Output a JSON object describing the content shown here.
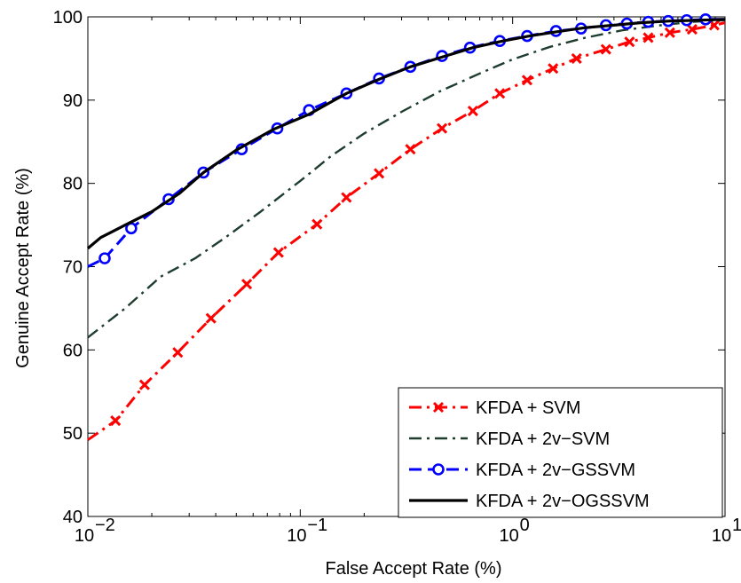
{
  "chart_data": {
    "type": "line",
    "xlabel": "False Accept Rate (%)",
    "ylabel": "Genuine Accept Rate (%)",
    "xscale": "log",
    "xlim": [
      0.01,
      10
    ],
    "ylim": [
      40,
      100
    ],
    "xticks": [
      {
        "value": 0.01,
        "base": "10",
        "exp": "−2"
      },
      {
        "value": 0.1,
        "base": "10",
        "exp": "−1"
      },
      {
        "value": 1,
        "base": "10",
        "exp": "0"
      },
      {
        "value": 10,
        "base": "10",
        "exp": "1"
      }
    ],
    "yticks": [
      "40",
      "50",
      "60",
      "70",
      "80",
      "90",
      "100"
    ],
    "legend_position": "bottom-right",
    "grid": false,
    "series": [
      {
        "name": "KFDA + SVM",
        "color": "#ff0000",
        "line_style": "dashdot",
        "marker": "x",
        "points": [
          [
            0.01,
            49.2
          ],
          [
            0.0135,
            51.5
          ],
          [
            0.0185,
            55.8
          ],
          [
            0.0265,
            59.7
          ],
          [
            0.038,
            63.8
          ],
          [
            0.056,
            67.9
          ],
          [
            0.079,
            71.7
          ],
          [
            0.12,
            75.1
          ],
          [
            0.165,
            78.3
          ],
          [
            0.235,
            81.2
          ],
          [
            0.33,
            84.1
          ],
          [
            0.465,
            86.6
          ],
          [
            0.65,
            88.7
          ],
          [
            0.87,
            90.8
          ],
          [
            1.17,
            92.4
          ],
          [
            1.55,
            93.8
          ],
          [
            2.0,
            95.0
          ],
          [
            2.75,
            96.1
          ],
          [
            3.55,
            97.0
          ],
          [
            4.35,
            97.5
          ],
          [
            5.5,
            98.1
          ],
          [
            7.0,
            98.5
          ],
          [
            8.9,
            99.0
          ],
          [
            10,
            99.3
          ]
        ],
        "markers": [
          [
            0.0135,
            51.5
          ],
          [
            0.0185,
            55.8
          ],
          [
            0.0265,
            59.7
          ],
          [
            0.038,
            63.8
          ],
          [
            0.056,
            67.9
          ],
          [
            0.079,
            71.7
          ],
          [
            0.12,
            75.1
          ],
          [
            0.165,
            78.3
          ],
          [
            0.235,
            81.2
          ],
          [
            0.33,
            84.1
          ],
          [
            0.465,
            86.6
          ],
          [
            0.65,
            88.7
          ],
          [
            0.87,
            90.8
          ],
          [
            1.17,
            92.4
          ],
          [
            1.55,
            93.8
          ],
          [
            2.0,
            95.0
          ],
          [
            2.75,
            96.1
          ],
          [
            3.55,
            97.0
          ],
          [
            4.35,
            97.5
          ],
          [
            5.5,
            98.1
          ],
          [
            7.0,
            98.5
          ],
          [
            8.9,
            99.0
          ]
        ]
      },
      {
        "name": "KFDA + 2v−SVM",
        "color": "#1e3d2f",
        "line_style": "dashdot",
        "marker": "none",
        "points": [
          [
            0.01,
            61.5
          ],
          [
            0.015,
            65.0
          ],
          [
            0.022,
            68.8
          ],
          [
            0.032,
            71.0
          ],
          [
            0.045,
            73.6
          ],
          [
            0.065,
            76.6
          ],
          [
            0.1,
            80.3
          ],
          [
            0.14,
            83.3
          ],
          [
            0.2,
            86.0
          ],
          [
            0.3,
            88.6
          ],
          [
            0.45,
            91.0
          ],
          [
            0.7,
            93.2
          ],
          [
            1.0,
            94.9
          ],
          [
            1.5,
            96.4
          ],
          [
            2.2,
            97.5
          ],
          [
            3.3,
            98.4
          ],
          [
            5.0,
            99.0
          ],
          [
            7.0,
            99.4
          ],
          [
            10,
            99.6
          ]
        ],
        "markers": []
      },
      {
        "name": "KFDA + 2v−GSSVM",
        "color": "#0000ff",
        "line_style": "dashed",
        "marker": "o",
        "points": [
          [
            0.01,
            70.0
          ],
          [
            0.012,
            71.0
          ],
          [
            0.016,
            74.6
          ],
          [
            0.024,
            78.1
          ],
          [
            0.035,
            81.3
          ],
          [
            0.053,
            84.1
          ],
          [
            0.078,
            86.6
          ],
          [
            0.11,
            88.8
          ],
          [
            0.165,
            90.8
          ],
          [
            0.235,
            92.6
          ],
          [
            0.33,
            94.0
          ],
          [
            0.465,
            95.3
          ],
          [
            0.63,
            96.3
          ],
          [
            0.87,
            97.1
          ],
          [
            1.17,
            97.7
          ],
          [
            1.6,
            98.3
          ],
          [
            2.1,
            98.6
          ],
          [
            2.75,
            99.0
          ],
          [
            3.45,
            99.2
          ],
          [
            4.35,
            99.4
          ],
          [
            5.4,
            99.5
          ],
          [
            6.6,
            99.6
          ],
          [
            8.1,
            99.7
          ],
          [
            10,
            99.7
          ]
        ],
        "markers": [
          [
            0.012,
            71.0
          ],
          [
            0.016,
            74.6
          ],
          [
            0.024,
            78.1
          ],
          [
            0.035,
            81.3
          ],
          [
            0.053,
            84.1
          ],
          [
            0.078,
            86.6
          ],
          [
            0.11,
            88.8
          ],
          [
            0.165,
            90.8
          ],
          [
            0.235,
            92.6
          ],
          [
            0.33,
            94.0
          ],
          [
            0.465,
            95.3
          ],
          [
            0.63,
            96.3
          ],
          [
            0.87,
            97.1
          ],
          [
            1.17,
            97.7
          ],
          [
            1.6,
            98.3
          ],
          [
            2.1,
            98.6
          ],
          [
            2.75,
            99.0
          ],
          [
            3.45,
            99.2
          ],
          [
            4.35,
            99.4
          ],
          [
            5.4,
            99.5
          ],
          [
            6.6,
            99.6
          ],
          [
            8.1,
            99.7
          ]
        ]
      },
      {
        "name": "KFDA + 2v−OGSSVM",
        "color": "#000000",
        "line_style": "solid",
        "marker": "none",
        "points": [
          [
            0.01,
            72.2
          ],
          [
            0.0115,
            73.5
          ],
          [
            0.015,
            75.0
          ],
          [
            0.02,
            76.6
          ],
          [
            0.027,
            78.8
          ],
          [
            0.035,
            81.3
          ],
          [
            0.05,
            84.0
          ],
          [
            0.075,
            86.5
          ],
          [
            0.11,
            88.3
          ],
          [
            0.165,
            90.8
          ],
          [
            0.235,
            92.5
          ],
          [
            0.33,
            94.0
          ],
          [
            0.47,
            95.2
          ],
          [
            0.65,
            96.3
          ],
          [
            0.9,
            97.1
          ],
          [
            1.2,
            97.7
          ],
          [
            1.6,
            98.2
          ],
          [
            2.2,
            98.7
          ],
          [
            3.0,
            99.0
          ],
          [
            4.0,
            99.3
          ],
          [
            5.5,
            99.5
          ],
          [
            7.5,
            99.6
          ],
          [
            10,
            99.7
          ]
        ],
        "markers": []
      }
    ]
  }
}
